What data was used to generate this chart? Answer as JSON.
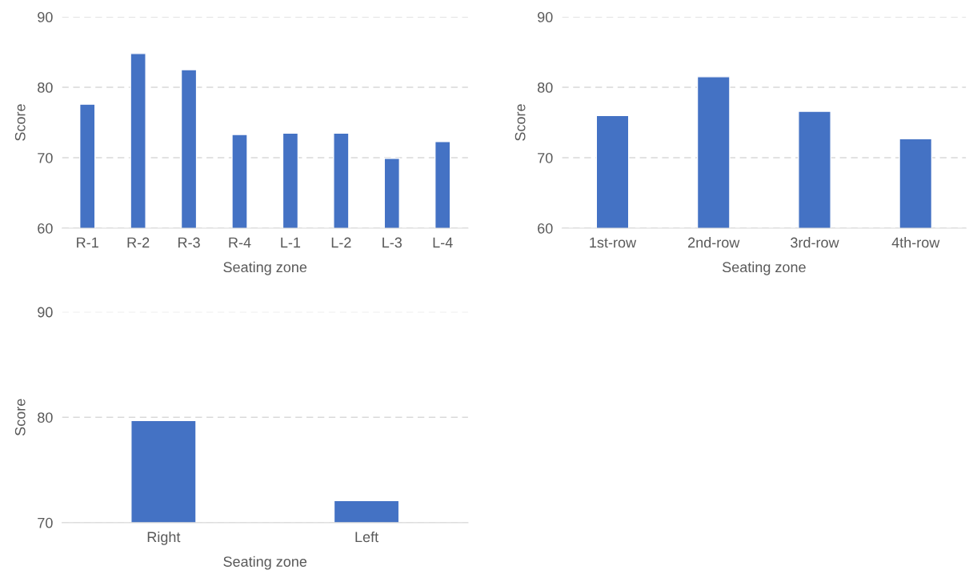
{
  "chart_data": [
    {
      "type": "bar",
      "categories": [
        "R-1",
        "R-2",
        "R-3",
        "R-4",
        "L-1",
        "L-2",
        "L-3",
        "L-4"
      ],
      "values": [
        77.6,
        84.8,
        82.5,
        73.3,
        73.5,
        73.5,
        69.9,
        72.3
      ],
      "color": "#4472c4",
      "xlabel": "Seating zone",
      "ylabel": "Score",
      "ylim": [
        60,
        90
      ],
      "yticks": [
        60,
        70,
        80,
        90
      ],
      "grid": "y"
    },
    {
      "type": "bar",
      "categories": [
        "1st-row",
        "2nd-row",
        "3rd-row",
        "4th-row"
      ],
      "values": [
        76.0,
        81.5,
        76.6,
        72.7
      ],
      "color": "#4472c4",
      "xlabel": "Seating zone",
      "ylabel": "Score",
      "ylim": [
        60,
        90
      ],
      "yticks": [
        60,
        70,
        80,
        90
      ],
      "grid": "y"
    },
    {
      "type": "bar",
      "categories": [
        "Right",
        "Left"
      ],
      "values": [
        79.7,
        72.1
      ],
      "color": "#4472c4",
      "xlabel": "Seating zone",
      "ylabel": "Score",
      "ylim": [
        70,
        90
      ],
      "yticks": [
        70,
        80,
        90
      ],
      "grid": "y"
    }
  ]
}
